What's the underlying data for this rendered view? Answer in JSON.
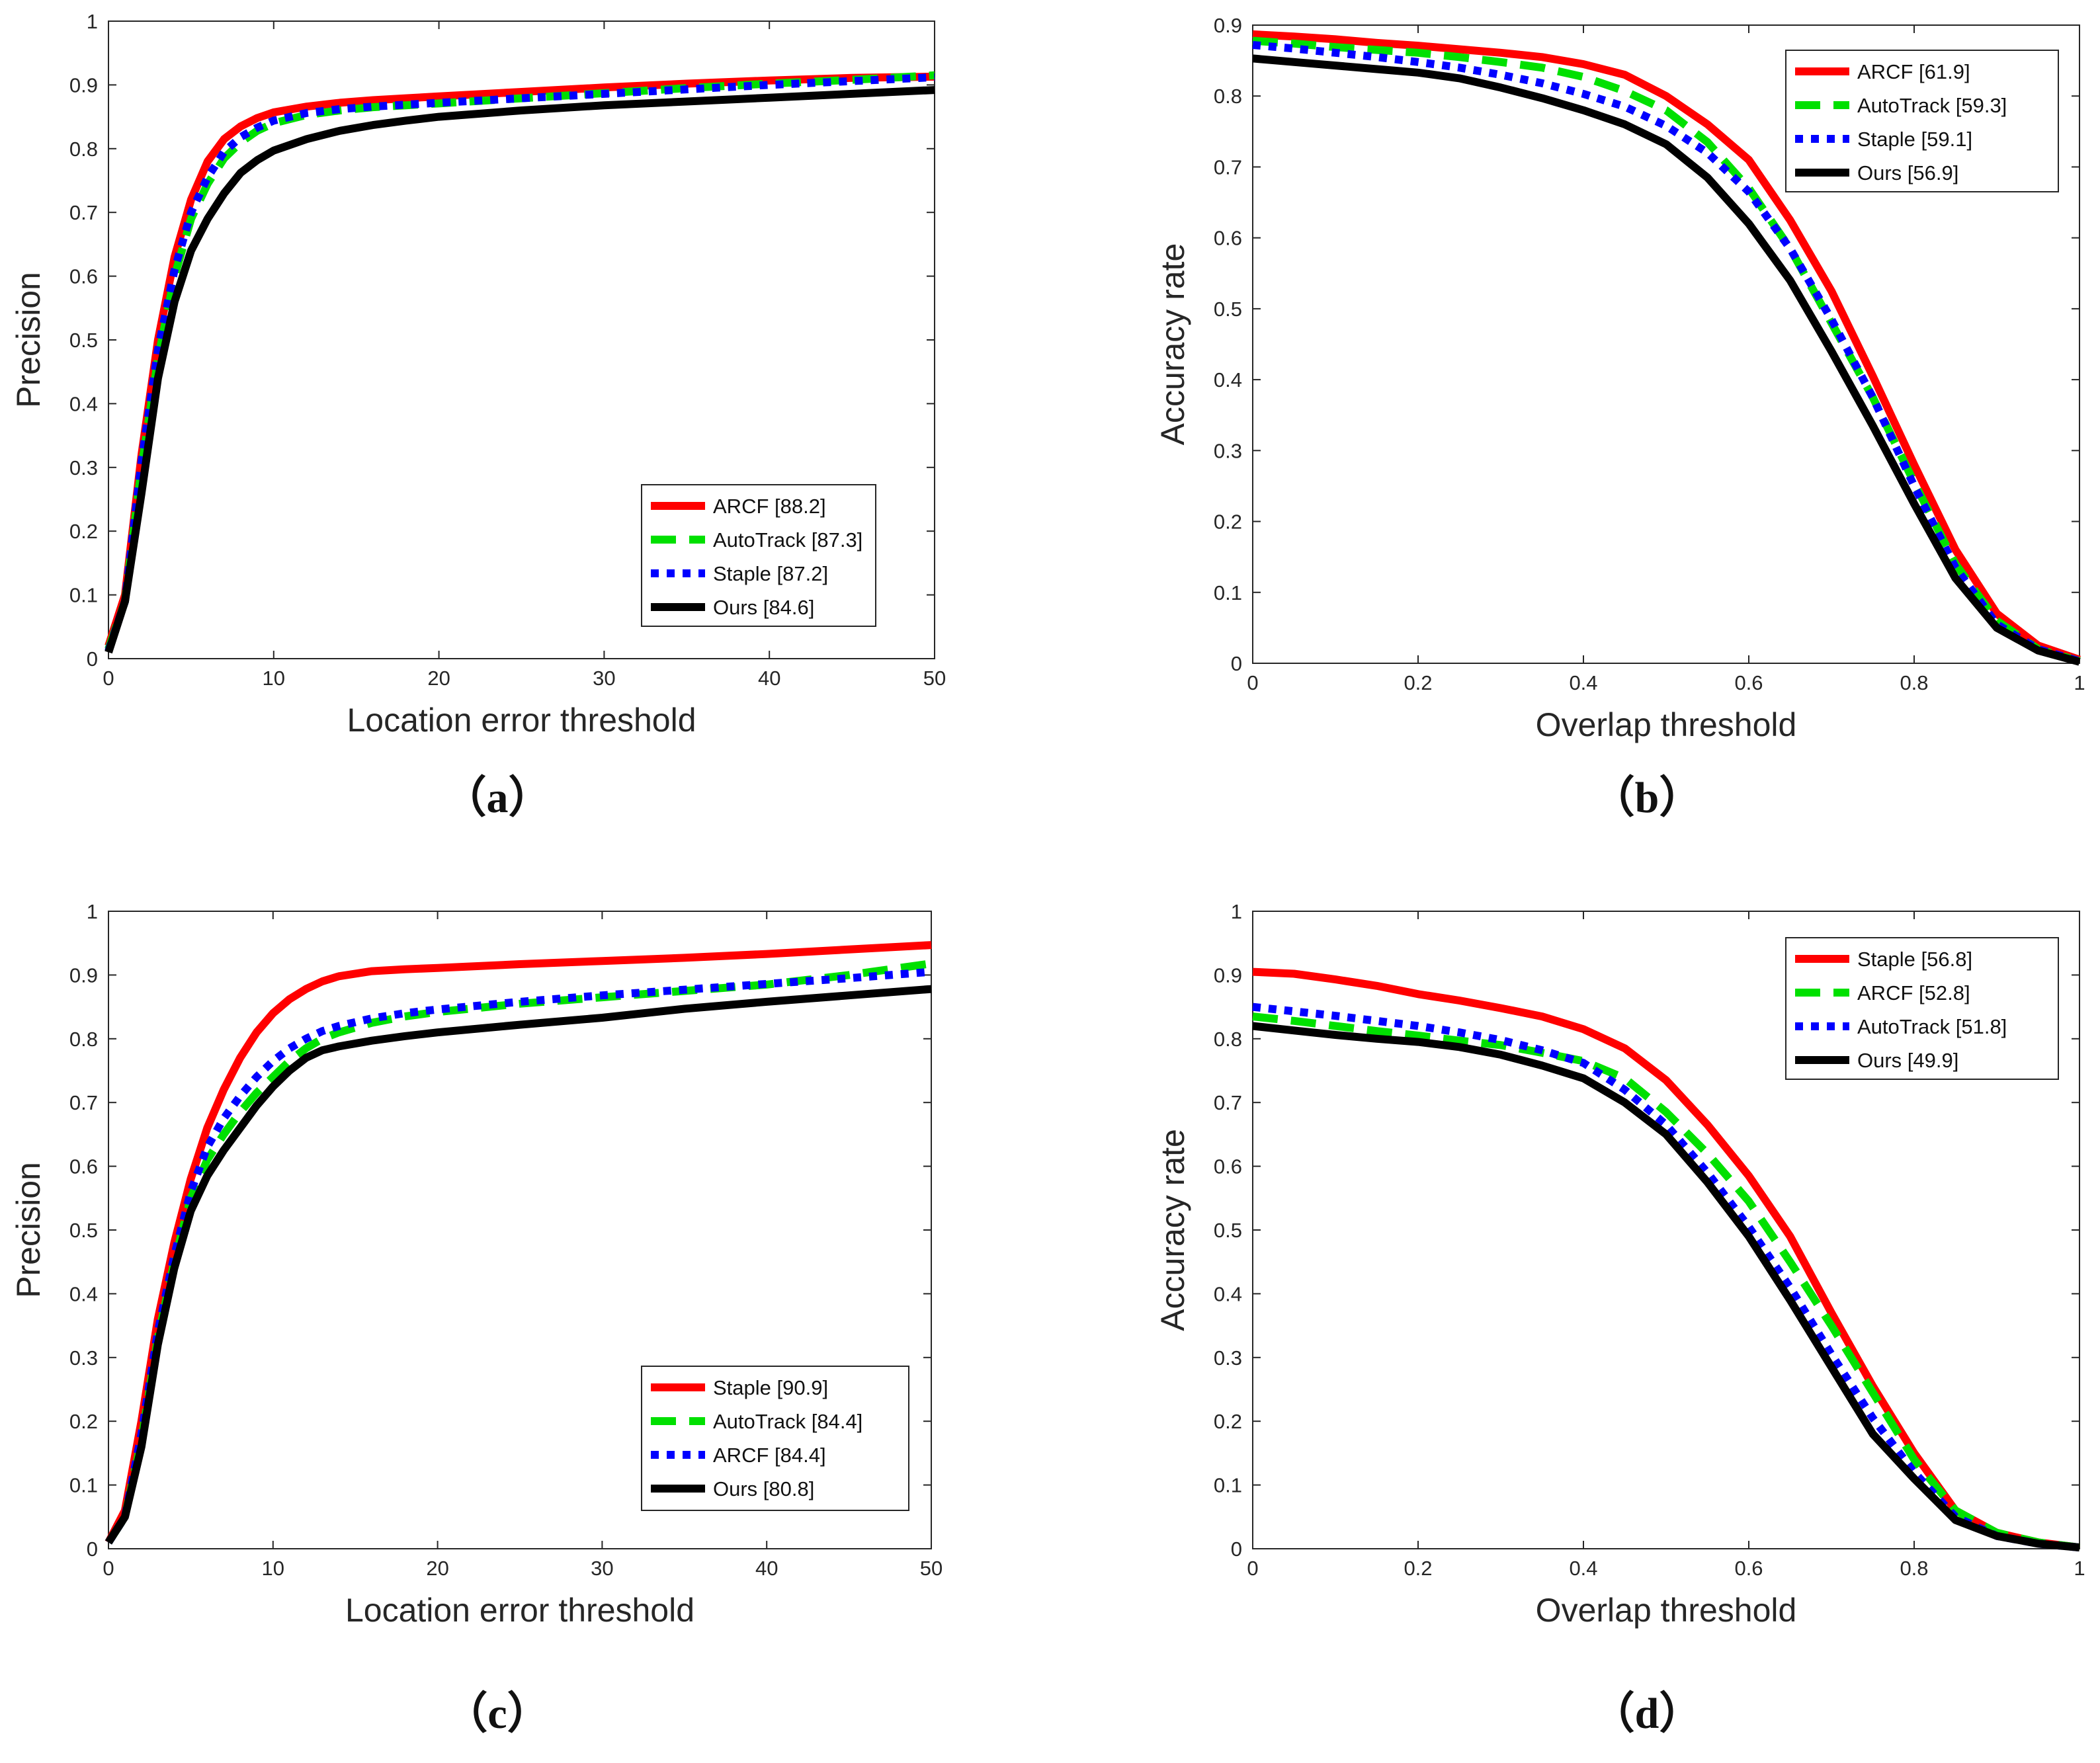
{
  "colors": {
    "red": "#ff0000",
    "green": "#00e000",
    "blue": "#0000ff",
    "black": "#000000"
  },
  "chart_data": [
    {
      "type": "line",
      "panel_label": "（a）",
      "xlabel": "Location error threshold",
      "ylabel": "Precision",
      "xlim": [
        0,
        50
      ],
      "ylim": [
        0,
        1
      ],
      "xticks": [
        0,
        10,
        20,
        30,
        40,
        50
      ],
      "xtick_labels": [
        "0",
        "10",
        "20",
        "30",
        "40",
        "50"
      ],
      "yticks": [
        0,
        0.1,
        0.2,
        0.3,
        0.4,
        0.5,
        0.6,
        0.7,
        0.8,
        0.9,
        1
      ],
      "ytick_labels": [
        "0",
        "0.1",
        "0.2",
        "0.3",
        "0.4",
        "0.5",
        "0.6",
        "0.7",
        "0.8",
        "0.9",
        "1"
      ],
      "legend_position": "bottom-right",
      "x": [
        0,
        1,
        2,
        3,
        4,
        5,
        6,
        7,
        8,
        9,
        10,
        12,
        14,
        16,
        18,
        20,
        25,
        30,
        35,
        40,
        45,
        50
      ],
      "series": [
        {
          "name": "ARCF [88.2]",
          "color": "#ff0000",
          "style": "solid",
          "values": [
            0.02,
            0.1,
            0.32,
            0.5,
            0.63,
            0.72,
            0.78,
            0.815,
            0.835,
            0.848,
            0.857,
            0.866,
            0.872,
            0.876,
            0.879,
            0.882,
            0.889,
            0.896,
            0.902,
            0.907,
            0.911,
            0.913
          ]
        },
        {
          "name": "AutoTrack [87.3]",
          "color": "#00e000",
          "style": "dashed",
          "values": [
            0.015,
            0.09,
            0.3,
            0.47,
            0.6,
            0.69,
            0.745,
            0.785,
            0.81,
            0.828,
            0.84,
            0.853,
            0.86,
            0.865,
            0.868,
            0.871,
            0.879,
            0.887,
            0.895,
            0.902,
            0.908,
            0.915
          ]
        },
        {
          "name": "Staple [87.2]",
          "color": "#0000ff",
          "style": "dotted",
          "values": [
            0.012,
            0.09,
            0.31,
            0.485,
            0.61,
            0.7,
            0.755,
            0.795,
            0.818,
            0.833,
            0.844,
            0.856,
            0.862,
            0.866,
            0.869,
            0.872,
            0.879,
            0.886,
            0.893,
            0.9,
            0.906,
            0.912
          ]
        },
        {
          "name": "Ours [84.6]",
          "color": "#000000",
          "style": "solid",
          "values": [
            0.01,
            0.09,
            0.26,
            0.44,
            0.56,
            0.64,
            0.69,
            0.73,
            0.762,
            0.782,
            0.797,
            0.815,
            0.828,
            0.837,
            0.844,
            0.85,
            0.86,
            0.868,
            0.874,
            0.88,
            0.886,
            0.892
          ]
        }
      ]
    },
    {
      "type": "line",
      "panel_label": "（b）",
      "xlabel": "Overlap threshold",
      "ylabel": "Accuracy rate",
      "xlim": [
        0,
        1
      ],
      "ylim": [
        0,
        0.9
      ],
      "xticks": [
        0,
        0.2,
        0.4,
        0.6,
        0.8,
        1
      ],
      "xtick_labels": [
        "0",
        "0.2",
        "0.4",
        "0.6",
        "0.8",
        "1"
      ],
      "yticks": [
        0,
        0.1,
        0.2,
        0.3,
        0.4,
        0.5,
        0.6,
        0.7,
        0.8,
        0.9
      ],
      "ytick_labels": [
        "0",
        "0.1",
        "0.2",
        "0.3",
        "0.4",
        "0.5",
        "0.6",
        "0.7",
        "0.8",
        "0.9"
      ],
      "legend_position": "top-right",
      "x": [
        0,
        0.05,
        0.1,
        0.15,
        0.2,
        0.25,
        0.3,
        0.35,
        0.4,
        0.45,
        0.5,
        0.55,
        0.6,
        0.65,
        0.7,
        0.75,
        0.8,
        0.85,
        0.9,
        0.95,
        1
      ],
      "series": [
        {
          "name": "ARCF [61.9]",
          "color": "#ff0000",
          "style": "solid",
          "values": [
            0.887,
            0.884,
            0.88,
            0.875,
            0.871,
            0.866,
            0.861,
            0.855,
            0.845,
            0.83,
            0.8,
            0.76,
            0.71,
            0.625,
            0.525,
            0.405,
            0.28,
            0.16,
            0.07,
            0.025,
            0.005
          ]
        },
        {
          "name": "AutoTrack [59.3]",
          "color": "#00e000",
          "style": "dashed",
          "values": [
            0.878,
            0.874,
            0.869,
            0.865,
            0.861,
            0.855,
            0.848,
            0.84,
            0.827,
            0.807,
            0.78,
            0.735,
            0.67,
            0.585,
            0.48,
            0.375,
            0.255,
            0.14,
            0.06,
            0.02,
            0.003
          ]
        },
        {
          "name": "Staple [59.1]",
          "color": "#0000ff",
          "style": "dotted",
          "values": [
            0.872,
            0.867,
            0.861,
            0.855,
            0.848,
            0.84,
            0.83,
            0.818,
            0.803,
            0.785,
            0.758,
            0.72,
            0.665,
            0.585,
            0.485,
            0.375,
            0.25,
            0.135,
            0.055,
            0.02,
            0.003
          ]
        },
        {
          "name": "Ours [56.9]",
          "color": "#000000",
          "style": "solid",
          "values": [
            0.853,
            0.848,
            0.843,
            0.838,
            0.833,
            0.825,
            0.812,
            0.797,
            0.78,
            0.76,
            0.732,
            0.685,
            0.62,
            0.54,
            0.44,
            0.335,
            0.225,
            0.12,
            0.05,
            0.018,
            0.002
          ]
        }
      ]
    },
    {
      "type": "line",
      "panel_label": "（c）",
      "xlabel": "Location error threshold",
      "ylabel": "Precision",
      "xlim": [
        0,
        50
      ],
      "ylim": [
        0,
        1
      ],
      "xticks": [
        0,
        10,
        20,
        30,
        40,
        50
      ],
      "xtick_labels": [
        "0",
        "10",
        "20",
        "30",
        "40",
        "50"
      ],
      "yticks": [
        0,
        0.1,
        0.2,
        0.3,
        0.4,
        0.5,
        0.6,
        0.7,
        0.8,
        0.9,
        1
      ],
      "ytick_labels": [
        "0",
        "0.1",
        "0.2",
        "0.3",
        "0.4",
        "0.5",
        "0.6",
        "0.7",
        "0.8",
        "0.9",
        "1"
      ],
      "legend_position": "bottom-right",
      "x": [
        0,
        1,
        2,
        3,
        4,
        5,
        6,
        7,
        8,
        9,
        10,
        11,
        12,
        13,
        14,
        16,
        18,
        20,
        25,
        30,
        35,
        40,
        45,
        50
      ],
      "series": [
        {
          "name": "Staple [90.9]",
          "color": "#ff0000",
          "style": "solid",
          "values": [
            0.01,
            0.06,
            0.2,
            0.36,
            0.48,
            0.58,
            0.66,
            0.72,
            0.77,
            0.81,
            0.84,
            0.862,
            0.878,
            0.89,
            0.898,
            0.906,
            0.909,
            0.911,
            0.917,
            0.922,
            0.927,
            0.933,
            0.94,
            0.947
          ]
        },
        {
          "name": "AutoTrack [84.4]",
          "color": "#00e000",
          "style": "dashed",
          "values": [
            0.01,
            0.05,
            0.17,
            0.33,
            0.45,
            0.55,
            0.61,
            0.65,
            0.685,
            0.715,
            0.74,
            0.765,
            0.785,
            0.8,
            0.81,
            0.825,
            0.835,
            0.842,
            0.855,
            0.865,
            0.875,
            0.885,
            0.9,
            0.918
          ]
        },
        {
          "name": "ARCF [84.4]",
          "color": "#0000ff",
          "style": "dotted",
          "values": [
            0.01,
            0.05,
            0.18,
            0.34,
            0.46,
            0.56,
            0.63,
            0.675,
            0.71,
            0.74,
            0.765,
            0.785,
            0.8,
            0.812,
            0.82,
            0.832,
            0.84,
            0.846,
            0.858,
            0.868,
            0.877,
            0.886,
            0.895,
            0.905
          ]
        },
        {
          "name": "Ours [80.8]",
          "color": "#000000",
          "style": "solid",
          "values": [
            0.01,
            0.05,
            0.16,
            0.32,
            0.44,
            0.53,
            0.585,
            0.625,
            0.66,
            0.695,
            0.725,
            0.75,
            0.77,
            0.782,
            0.788,
            0.797,
            0.804,
            0.81,
            0.822,
            0.833,
            0.847,
            0.858,
            0.868,
            0.878
          ]
        }
      ]
    },
    {
      "type": "line",
      "panel_label": "（d）",
      "xlabel": "Overlap threshold",
      "ylabel": "Accuracy rate",
      "xlim": [
        0,
        1
      ],
      "ylim": [
        0,
        1
      ],
      "xticks": [
        0,
        0.2,
        0.4,
        0.6,
        0.8,
        1
      ],
      "xtick_labels": [
        "0",
        "0.2",
        "0.4",
        "0.6",
        "0.8",
        "1"
      ],
      "yticks": [
        0,
        0.1,
        0.2,
        0.3,
        0.4,
        0.5,
        0.6,
        0.7,
        0.8,
        0.9,
        1
      ],
      "ytick_labels": [
        "0",
        "0.1",
        "0.2",
        "0.3",
        "0.4",
        "0.5",
        "0.6",
        "0.7",
        "0.8",
        "0.9",
        "1"
      ],
      "legend_position": "top-right",
      "x": [
        0,
        0.05,
        0.1,
        0.15,
        0.2,
        0.25,
        0.3,
        0.35,
        0.4,
        0.45,
        0.5,
        0.55,
        0.6,
        0.65,
        0.7,
        0.75,
        0.8,
        0.85,
        0.9,
        0.95,
        1
      ],
      "series": [
        {
          "name": "Staple [56.8]",
          "color": "#ff0000",
          "style": "solid",
          "values": [
            0.905,
            0.902,
            0.893,
            0.883,
            0.87,
            0.86,
            0.848,
            0.835,
            0.815,
            0.785,
            0.735,
            0.665,
            0.585,
            0.49,
            0.37,
            0.255,
            0.15,
            0.06,
            0.025,
            0.01,
            0.002
          ]
        },
        {
          "name": "ARCF [52.8]",
          "color": "#00e000",
          "style": "dashed",
          "values": [
            0.835,
            0.828,
            0.82,
            0.812,
            0.805,
            0.797,
            0.79,
            0.778,
            0.765,
            0.738,
            0.685,
            0.62,
            0.545,
            0.45,
            0.35,
            0.245,
            0.14,
            0.06,
            0.025,
            0.01,
            0.002
          ]
        },
        {
          "name": "AutoTrack [51.8]",
          "color": "#0000ff",
          "style": "dotted",
          "values": [
            0.85,
            0.843,
            0.836,
            0.828,
            0.82,
            0.81,
            0.798,
            0.782,
            0.762,
            0.72,
            0.665,
            0.59,
            0.505,
            0.41,
            0.305,
            0.205,
            0.12,
            0.05,
            0.02,
            0.008,
            0.002
          ]
        },
        {
          "name": "Ours [49.9]",
          "color": "#000000",
          "style": "solid",
          "values": [
            0.82,
            0.813,
            0.806,
            0.8,
            0.795,
            0.787,
            0.775,
            0.758,
            0.738,
            0.7,
            0.65,
            0.575,
            0.49,
            0.39,
            0.285,
            0.18,
            0.11,
            0.045,
            0.02,
            0.008,
            0.002
          ]
        }
      ]
    }
  ]
}
